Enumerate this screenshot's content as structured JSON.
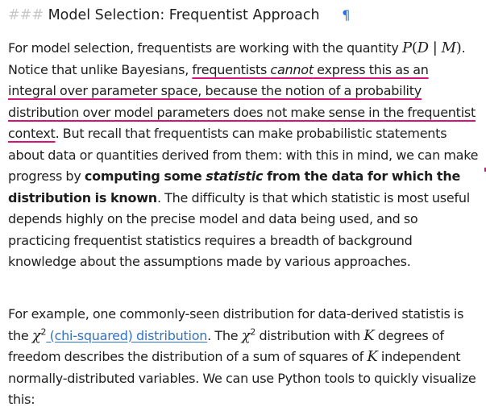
{
  "heading": {
    "prefix": "###",
    "title": "Model Selection: Frequentist Approach",
    "pilcrow": "¶"
  },
  "para1": {
    "t1": "For model selection, frequentists are working with the quantity ",
    "m1_P": "P",
    "m1_open": "(",
    "m1_D": "D",
    "m1_bar": " | ",
    "m1_M": "M",
    "m1_close": ")",
    "t2": ". Notice that unlike Bayesians, ",
    "hl1": "frequentists ",
    "hl_em": "cannot",
    "hl2": " express this as an integral over parameter space, because the notion of a probability distribution over model parameters does not make sense in the frequentist context",
    "t3": ". But recall that frequentists can make probabilistic statements about data or quantities derived from them: with this in mind, we can make progress by ",
    "b1": "computing some ",
    "b_em": "statistic",
    "b2": " from the data for which the distribution is known",
    "t4": ". The difficulty is that which statistic is most useful depends highly on the precise model and data being used, and so practicing frequentist statistics requires a breadth of background knowledge about the assumptions made by various approaches."
  },
  "para2": {
    "t1": "For example, one commonly-seen distribution for data-derived statistis is the ",
    "chi": "χ",
    "sq": "2",
    "link": " (chi-squared) distribution",
    "t2": ". The ",
    "chi2": "χ",
    "sq2": "2",
    "t3": " distribution with ",
    "K": "K",
    "t4": " degrees of freedom describes the distribution of a sum of squares of ",
    "K2": "K",
    "t5": " independent normally-distributed variables. We can use Python tools to quickly visualize this:"
  },
  "colors": {
    "highlight_underline": "#d6137a",
    "link": "#2f73c4",
    "anchor": "#2e6fd8"
  }
}
